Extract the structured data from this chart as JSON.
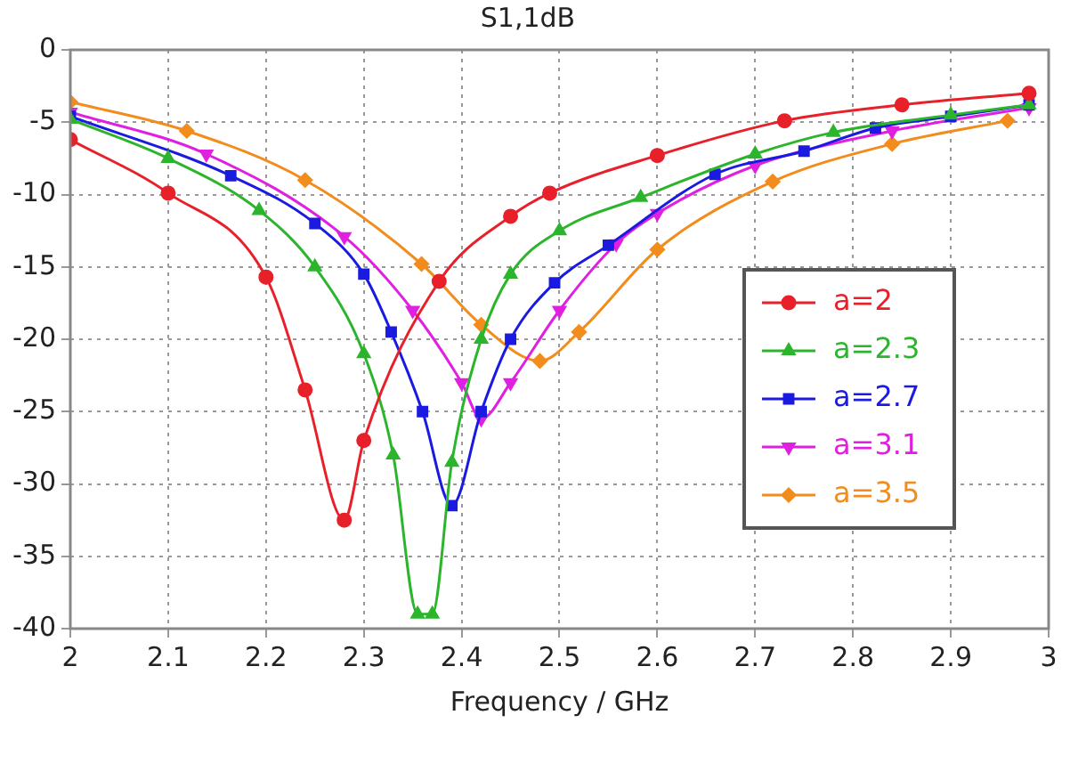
{
  "chart_data": {
    "type": "line",
    "title": "S1,1dB",
    "xlabel": "Frequency / GHz",
    "xlim": [
      2,
      3
    ],
    "xticks": [
      2,
      2.1,
      2.2,
      2.3,
      2.4,
      2.5,
      2.6,
      2.7,
      2.8,
      2.9,
      3
    ],
    "ylim": [
      -40,
      0
    ],
    "yticks": [
      -40,
      -35,
      -30,
      -25,
      -20,
      -15,
      -10,
      -5,
      0
    ],
    "grid": true,
    "legend": "right",
    "line_style": "solid",
    "series": [
      {
        "name": "a=2",
        "color": "#e8202a",
        "marker": "circle",
        "x": [
          2,
          2.1,
          2.2,
          2.24,
          2.28,
          2.3,
          2.377,
          2.45,
          2.49,
          2.6,
          2.73,
          2.85,
          2.98
        ],
        "values": [
          -6.2,
          -9.9,
          -15.7,
          -23.5,
          -32.5,
          -27,
          -16,
          -11.5,
          -9.9,
          -7.3,
          -4.9,
          -3.8,
          -3
        ]
      },
      {
        "name": "a=2.3",
        "color": "#2cb52c",
        "marker": "triangle",
        "x": [
          2,
          2.1,
          2.193,
          2.25,
          2.3,
          2.33,
          2.355,
          2.37,
          2.39,
          2.42,
          2.45,
          2.5,
          2.583,
          2.7,
          2.78,
          2.9,
          2.98
        ],
        "values": [
          -4.8,
          -7.5,
          -11.1,
          -15,
          -21,
          -28,
          -39,
          -39,
          -28.5,
          -20,
          -15.5,
          -12.5,
          -10.2,
          -7.2,
          -5.7,
          -4.5,
          -3.8
        ]
      },
      {
        "name": "a=2.7",
        "color": "#1a1ae0",
        "marker": "square",
        "x": [
          2,
          2.164,
          2.25,
          2.3,
          2.328,
          2.36,
          2.39,
          2.42,
          2.45,
          2.495,
          2.55,
          2.659,
          2.75,
          2.823,
          2.9,
          2.98
        ],
        "values": [
          -4.6,
          -8.7,
          -12,
          -15.5,
          -19.5,
          -25,
          -31.5,
          -25,
          -20,
          -16.1,
          -13.5,
          -8.6,
          -7,
          -5.4,
          -4.6,
          -3.8
        ]
      },
      {
        "name": "a=3.1",
        "color": "#e020e0",
        "marker": "triangle-down",
        "x": [
          2,
          2.139,
          2.28,
          2.35,
          2.4,
          2.42,
          2.45,
          2.5,
          2.558,
          2.6,
          2.7,
          2.84,
          2.98
        ],
        "values": [
          -4.3,
          -7.2,
          -12.9,
          -18,
          -23,
          -25.5,
          -23,
          -18,
          -13.4,
          -11.3,
          -8,
          -5.6,
          -4
        ]
      },
      {
        "name": "a=3.5",
        "color": "#f28c1c",
        "marker": "diamond",
        "x": [
          2,
          2.119,
          2.24,
          2.359,
          2.42,
          2.48,
          2.52,
          2.6,
          2.718,
          2.84,
          2.958
        ],
        "values": [
          -3.6,
          -5.6,
          -9,
          -14.8,
          -19,
          -21.5,
          -19.5,
          -13.8,
          -9.1,
          -6.5,
          -4.9
        ]
      }
    ]
  }
}
